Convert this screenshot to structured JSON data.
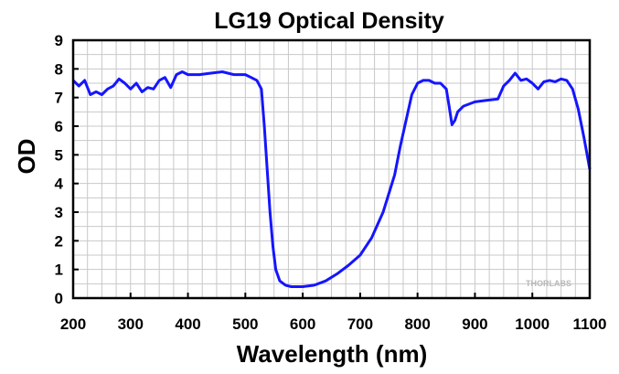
{
  "chart_data": {
    "type": "line",
    "title": "LG19 Optical Density",
    "xlabel": "Wavelength (nm)",
    "ylabel": "OD",
    "xlim": [
      200,
      1100
    ],
    "ylim": [
      0,
      9
    ],
    "x_ticks": [
      "200",
      "300",
      "400",
      "500",
      "600",
      "700",
      "800",
      "900",
      "1000",
      "1100"
    ],
    "y_ticks": [
      "0",
      "1",
      "2",
      "3",
      "4",
      "5",
      "6",
      "7",
      "8",
      "9"
    ],
    "grid": true,
    "watermark": "THORLABS",
    "colors": {
      "line": "#1515ff",
      "grid": "#c8c8c8"
    },
    "series": [
      {
        "x": [
          200,
          210,
          220,
          230,
          240,
          250,
          260,
          270,
          280,
          290,
          300,
          310,
          320,
          330,
          340,
          350,
          360,
          370,
          380,
          390,
          400,
          420,
          440,
          460,
          480,
          500,
          510,
          520,
          528,
          533,
          538,
          543,
          548,
          553,
          560,
          570,
          580,
          600,
          620,
          640,
          660,
          680,
          700,
          720,
          740,
          760,
          770,
          780,
          790,
          800,
          810,
          820,
          830,
          840,
          850,
          855,
          860,
          865,
          870,
          880,
          900,
          920,
          940,
          950,
          960,
          970,
          980,
          990,
          1000,
          1010,
          1020,
          1030,
          1040,
          1050,
          1060,
          1070,
          1080,
          1090,
          1100
        ],
        "y": [
          7.6,
          7.4,
          7.6,
          7.1,
          7.2,
          7.1,
          7.3,
          7.4,
          7.65,
          7.5,
          7.3,
          7.5,
          7.2,
          7.35,
          7.3,
          7.6,
          7.7,
          7.35,
          7.8,
          7.9,
          7.8,
          7.8,
          7.85,
          7.9,
          7.8,
          7.8,
          7.7,
          7.6,
          7.3,
          6.0,
          4.5,
          3.0,
          1.8,
          1.0,
          0.6,
          0.45,
          0.4,
          0.4,
          0.45,
          0.6,
          0.85,
          1.15,
          1.5,
          2.1,
          3.0,
          4.3,
          5.3,
          6.2,
          7.1,
          7.5,
          7.6,
          7.6,
          7.5,
          7.5,
          7.3,
          6.7,
          6.05,
          6.2,
          6.5,
          6.7,
          6.85,
          6.9,
          6.95,
          7.4,
          7.6,
          7.85,
          7.6,
          7.65,
          7.5,
          7.3,
          7.55,
          7.6,
          7.55,
          7.65,
          7.6,
          7.3,
          6.6,
          5.6,
          4.5
        ]
      }
    ]
  }
}
